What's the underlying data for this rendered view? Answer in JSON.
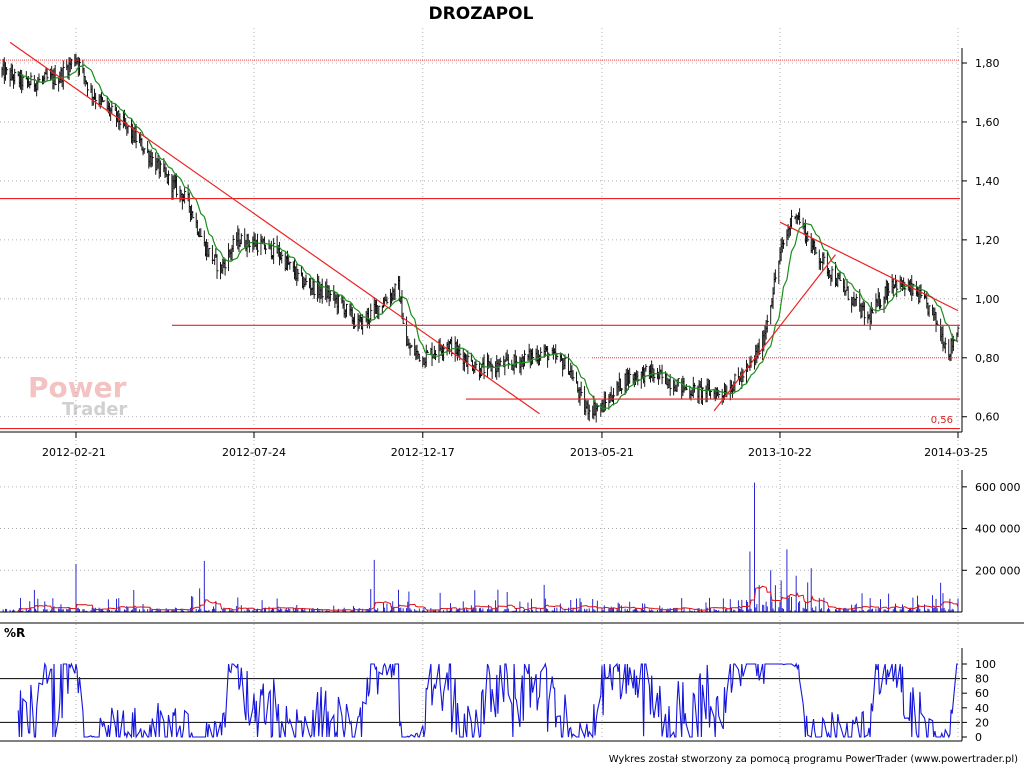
{
  "chart_data": [
    {
      "type": "ohlc",
      "title": "DROZAPOL",
      "x_ticks": [
        "2012-02-21",
        "2012-07-24",
        "2012-12-17",
        "2013-05-21",
        "2013-10-22",
        "2014-03-25"
      ],
      "x_range": [
        "2011-12-19",
        "2014-03-25"
      ],
      "y_ticks": [
        "0,60",
        "0,80",
        "1,00",
        "1,20",
        "1,40",
        "1,60",
        "1,80"
      ],
      "ylim": [
        0.555,
        1.895
      ],
      "annotation_low": "0,56",
      "horizontal_lines": [
        1.81,
        1.34,
        0.91,
        0.8,
        0.66,
        0.56
      ],
      "trend_lines": [
        {
          "from": [
            "2011-12-26",
            1.87
          ],
          "to": [
            "2013-03-28",
            0.61
          ]
        },
        {
          "from": [
            "2013-08-26",
            0.62
          ],
          "to": [
            "2013-12-09",
            1.15
          ]
        },
        {
          "from": [
            "2013-10-22",
            1.26
          ],
          "to": [
            "2014-03-25",
            0.96
          ]
        }
      ],
      "close_series": [
        [
          "2011-12-19",
          1.77
        ],
        [
          "2012-01-09",
          1.73
        ],
        [
          "2012-02-06",
          1.75
        ],
        [
          "2012-02-21",
          1.82
        ],
        [
          "2012-03-05",
          1.7
        ],
        [
          "2012-03-26",
          1.62
        ],
        [
          "2012-04-16",
          1.53
        ],
        [
          "2012-05-07",
          1.42
        ],
        [
          "2012-05-28",
          1.33
        ],
        [
          "2012-06-11",
          1.18
        ],
        [
          "2012-06-25",
          1.1
        ],
        [
          "2012-07-09",
          1.2
        ],
        [
          "2012-07-24",
          1.19
        ],
        [
          "2012-08-13",
          1.16
        ],
        [
          "2012-09-03",
          1.06
        ],
        [
          "2012-09-24",
          1.02
        ],
        [
          "2012-10-08",
          0.98
        ],
        [
          "2012-10-22",
          0.91
        ],
        [
          "2012-11-05",
          0.96
        ],
        [
          "2012-11-26",
          1.04
        ],
        [
          "2012-12-03",
          0.84
        ],
        [
          "2012-12-17",
          0.8
        ],
        [
          "2013-01-07",
          0.85
        ],
        [
          "2013-02-04",
          0.76
        ],
        [
          "2013-03-04",
          0.78
        ],
        [
          "2013-04-01",
          0.82
        ],
        [
          "2013-04-22",
          0.77
        ],
        [
          "2013-05-06",
          0.63
        ],
        [
          "2013-05-21",
          0.63
        ],
        [
          "2013-06-10",
          0.73
        ],
        [
          "2013-07-01",
          0.75
        ],
        [
          "2013-08-05",
          0.69
        ],
        [
          "2013-09-02",
          0.68
        ],
        [
          "2013-09-23",
          0.75
        ],
        [
          "2013-10-07",
          0.85
        ],
        [
          "2013-10-22",
          1.15
        ],
        [
          "2013-11-04",
          1.3
        ],
        [
          "2013-11-18",
          1.18
        ],
        [
          "2013-12-09",
          1.07
        ],
        [
          "2014-01-06",
          0.93
        ],
        [
          "2014-01-27",
          1.06
        ],
        [
          "2014-02-17",
          1.02
        ],
        [
          "2014-03-03",
          0.95
        ],
        [
          "2014-03-17",
          0.82
        ],
        [
          "2014-03-25",
          0.9
        ]
      ]
    },
    {
      "type": "bar",
      "name": "volume",
      "y_ticks": [
        "200 000",
        "400 000",
        "600 000"
      ],
      "ylim": [
        0,
        700000
      ],
      "spikes": [
        [
          "2012-02-21",
          230000
        ],
        [
          "2012-06-11",
          245000
        ],
        [
          "2012-11-05",
          250000
        ],
        [
          "2013-04-01",
          130000
        ],
        [
          "2013-09-30",
          620000
        ],
        [
          "2013-09-26",
          290000
        ],
        [
          "2013-10-28",
          300000
        ],
        [
          "2013-10-14",
          200000
        ],
        [
          "2013-11-18",
          210000
        ],
        [
          "2014-03-10",
          140000
        ]
      ]
    },
    {
      "type": "line",
      "title": "%R",
      "y_ticks": [
        "0",
        "20",
        "40",
        "60",
        "80",
        "100"
      ],
      "ylim": [
        0,
        100
      ],
      "levels": [
        20,
        80
      ]
    }
  ],
  "footer": "Wykres został stworzony za pomocą programu PowerTrader (www.powertrader.pl)",
  "watermark": {
    "top": "Power",
    "bottom": "Trader"
  },
  "colors": {
    "price": "#000000",
    "moving_average": "#1a8f1a",
    "lines": "#ee2222",
    "volume": "#1010cc",
    "volume_average": "#dd1111",
    "oscillator": "#1515dd",
    "grid": "#a0a0a0"
  }
}
